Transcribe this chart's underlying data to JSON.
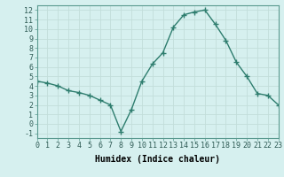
{
  "x": [
    0,
    1,
    2,
    3,
    4,
    5,
    6,
    7,
    8,
    9,
    10,
    11,
    12,
    13,
    14,
    15,
    16,
    17,
    18,
    19,
    20,
    21,
    22,
    23
  ],
  "y": [
    4.5,
    4.3,
    4.0,
    3.5,
    3.3,
    3.0,
    2.5,
    2.0,
    -0.8,
    1.5,
    4.5,
    6.3,
    7.5,
    10.2,
    11.5,
    11.8,
    12.0,
    10.5,
    8.8,
    6.5,
    5.0,
    3.2,
    3.0,
    2.0
  ],
  "xlabel": "Humidex (Indice chaleur)",
  "xlim": [
    0,
    23
  ],
  "ylim": [
    -1.5,
    12.5
  ],
  "yticks": [
    -1,
    0,
    1,
    2,
    3,
    4,
    5,
    6,
    7,
    8,
    9,
    10,
    11,
    12
  ],
  "xticks": [
    0,
    1,
    2,
    3,
    4,
    5,
    6,
    7,
    8,
    9,
    10,
    11,
    12,
    13,
    14,
    15,
    16,
    17,
    18,
    19,
    20,
    21,
    22,
    23
  ],
  "line_color": "#2e7d6e",
  "marker_color": "#2e7d6e",
  "bg_color": "#d6f0ef",
  "grid_color": "#c2deda",
  "label_fontsize": 7,
  "tick_fontsize": 6
}
